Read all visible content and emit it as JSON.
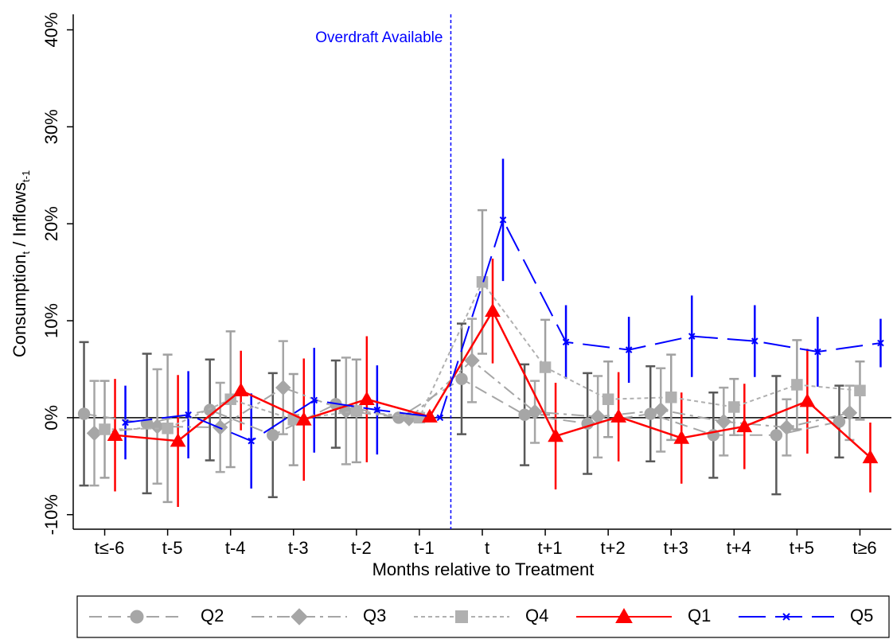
{
  "chart_data": {
    "type": "errorbar_line",
    "y_label_parts": [
      "Consumption",
      "t",
      " / Inflows",
      "t-1"
    ],
    "x_label": "Months relative to Treatment",
    "annotation": "Overdraft Available",
    "categories": [
      "t≤-6",
      "t-5",
      "t-4",
      "t-3",
      "t-2",
      "t-1",
      "t",
      "t+1",
      "t+2",
      "t+3",
      "t+4",
      "t+5",
      "t≥6"
    ],
    "ylim": [
      -11.5,
      41.6
    ],
    "yticks": [
      {
        "value": -10,
        "label": "-10%"
      },
      {
        "value": 0,
        "label": "0%"
      },
      {
        "value": 10,
        "label": "10%"
      },
      {
        "value": 20,
        "label": "20%"
      },
      {
        "value": 30,
        "label": "30%"
      },
      {
        "value": 40,
        "label": "40%"
      }
    ],
    "series": [
      {
        "name": "Q2",
        "color": "#a6a6a6",
        "error_color": "#595959",
        "line_style": "dash",
        "marker": "circle",
        "values": [
          0.4,
          -0.6,
          0.8,
          -1.8,
          1.4,
          0,
          4,
          0.3,
          -0.6,
          0.4,
          -1.8,
          -1.8,
          -0.4
        ],
        "errors": [
          7.4,
          7.2,
          5.2,
          6.4,
          4.5,
          0,
          5.7,
          5.2,
          5.2,
          4.9,
          4.4,
          6.1,
          3.7
        ]
      },
      {
        "name": "Q3",
        "color": "#a6a6a6",
        "error_color": "#a6a6a6",
        "line_style": "dashdot",
        "marker": "diamond",
        "values": [
          -1.6,
          -0.9,
          -1,
          3.1,
          0.7,
          -0.1,
          5.9,
          0.6,
          0.1,
          0.8,
          -0.4,
          -1,
          0.5
        ],
        "errors": [
          5.4,
          5.9,
          4.6,
          4.8,
          5.5,
          0,
          4.3,
          3.2,
          4.2,
          4.3,
          3.5,
          2.9,
          2.8
        ]
      },
      {
        "name": "Q4",
        "color": "#b0b0b0",
        "error_color": "#a0a0a0",
        "line_style": "dot",
        "marker": "square",
        "values": [
          -1.2,
          -1.1,
          1.9,
          -0.2,
          0.7,
          0,
          14,
          5.2,
          1.9,
          2.1,
          1.1,
          3.4,
          2.8
        ],
        "errors": [
          5,
          7.6,
          7,
          4.7,
          5.3,
          0,
          7.4,
          4.9,
          3.9,
          4.4,
          2.9,
          4.6,
          3
        ]
      },
      {
        "name": "Q1",
        "color": "#ff0000",
        "error_color": "#ff0000",
        "line_style": "solid",
        "marker": "triangle",
        "values": [
          -1.8,
          -2.4,
          2.8,
          -0.2,
          1.9,
          0.1,
          11,
          -1.9,
          0.1,
          -2.1,
          -0.9,
          1.7,
          -4.1
        ],
        "errors": [
          5.8,
          6.8,
          4.1,
          6.3,
          6.5,
          0,
          5.4,
          5.5,
          4.6,
          4.7,
          4.4,
          5.4,
          3.6
        ]
      },
      {
        "name": "Q5",
        "color": "#0000ff",
        "error_color": "#0000ff",
        "line_style": "longdash",
        "marker": "x",
        "values": [
          -0.5,
          0.3,
          -2.4,
          1.8,
          0.8,
          0,
          20.4,
          7.8,
          7,
          8.4,
          7.9,
          6.8,
          7.7
        ],
        "errors": [
          3.8,
          4.5,
          4.9,
          5.4,
          4.6,
          0,
          6.3,
          3.8,
          3.4,
          4.2,
          3.7,
          3.6,
          2.5
        ]
      }
    ]
  }
}
